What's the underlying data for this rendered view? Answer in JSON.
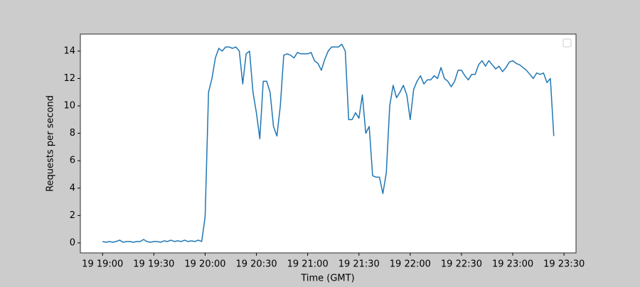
{
  "chart_data": {
    "type": "line",
    "x_label": "Time (GMT)",
    "y_label": "Requests per second",
    "x": [
      "19 19:00",
      "19 19:02",
      "19 19:04",
      "19 19:06",
      "19 19:08",
      "19 19:10",
      "19 19:12",
      "19 19:14",
      "19 19:16",
      "19 19:18",
      "19 19:20",
      "19 19:22",
      "19 19:24",
      "19 19:26",
      "19 19:28",
      "19 19:30",
      "19 19:32",
      "19 19:34",
      "19 19:36",
      "19 19:38",
      "19 19:40",
      "19 19:42",
      "19 19:44",
      "19 19:46",
      "19 19:48",
      "19 19:50",
      "19 19:52",
      "19 19:54",
      "19 19:56",
      "19 19:58",
      "19 20:00",
      "19 20:02",
      "19 20:04",
      "19 20:06",
      "19 20:08",
      "19 20:10",
      "19 20:12",
      "19 20:14",
      "19 20:16",
      "19 20:18",
      "19 20:20",
      "19 20:22",
      "19 20:24",
      "19 20:26",
      "19 20:28",
      "19 20:30",
      "19 20:32",
      "19 20:34",
      "19 20:36",
      "19 20:38",
      "19 20:40",
      "19 20:42",
      "19 20:44",
      "19 20:46",
      "19 20:48",
      "19 20:50",
      "19 20:52",
      "19 20:54",
      "19 20:56",
      "19 20:58",
      "19 21:00",
      "19 21:02",
      "19 21:04",
      "19 21:06",
      "19 21:08",
      "19 21:10",
      "19 21:12",
      "19 21:14",
      "19 21:16",
      "19 21:18",
      "19 21:20",
      "19 21:22",
      "19 21:24",
      "19 21:26",
      "19 21:28",
      "19 21:30",
      "19 21:32",
      "19 21:34",
      "19 21:36",
      "19 21:38",
      "19 21:40",
      "19 21:42",
      "19 21:44",
      "19 21:46",
      "19 21:48",
      "19 21:50",
      "19 21:52",
      "19 21:54",
      "19 21:56",
      "19 21:58",
      "19 22:00",
      "19 22:02",
      "19 22:04",
      "19 22:06",
      "19 22:08",
      "19 22:10",
      "19 22:12",
      "19 22:14",
      "19 22:16",
      "19 22:18",
      "19 22:20",
      "19 22:22",
      "19 22:24",
      "19 22:26",
      "19 22:28",
      "19 22:30",
      "19 22:32",
      "19 22:34",
      "19 22:36",
      "19 22:38",
      "19 22:40",
      "19 22:42",
      "19 22:44",
      "19 22:46",
      "19 22:48",
      "19 22:50",
      "19 22:52",
      "19 22:54",
      "19 22:56",
      "19 22:58",
      "19 23:00",
      "19 23:02",
      "19 23:04",
      "19 23:06",
      "19 23:08",
      "19 23:10",
      "19 23:12",
      "19 23:14",
      "19 23:16",
      "19 23:18",
      "19 23:20",
      "19 23:22",
      "19 23:24"
    ],
    "series": [
      {
        "color": "#1f77b4",
        "values": [
          0.1,
          0.05,
          0.1,
          0.05,
          0.1,
          0.2,
          0.05,
          0.1,
          0.1,
          0.05,
          0.1,
          0.1,
          0.25,
          0.1,
          0.05,
          0.1,
          0.1,
          0.05,
          0.15,
          0.1,
          0.2,
          0.1,
          0.15,
          0.1,
          0.2,
          0.1,
          0.15,
          0.1,
          0.2,
          0.1,
          1.9,
          11.0,
          12.0,
          13.5,
          14.2,
          14.0,
          14.3,
          14.3,
          14.2,
          14.3,
          14.0,
          11.6,
          13.8,
          14.0,
          11.0,
          9.5,
          7.6,
          11.8,
          11.8,
          11.0,
          8.5,
          7.8,
          10.0,
          13.7,
          13.8,
          13.7,
          13.5,
          13.9,
          13.8,
          13.8,
          13.8,
          13.9,
          13.3,
          13.1,
          12.6,
          13.4,
          14.0,
          14.3,
          14.3,
          14.3,
          14.5,
          14.0,
          9.0,
          9.0,
          9.5,
          9.1,
          10.8,
          8.0,
          8.5,
          4.9,
          4.8,
          4.8,
          3.6,
          5.1,
          10.0,
          11.5,
          10.6,
          11.0,
          11.5,
          10.8,
          9.0,
          11.2,
          11.8,
          12.2,
          11.6,
          11.9,
          11.9,
          12.2,
          12.0,
          12.8,
          12.0,
          11.8,
          11.4,
          11.8,
          12.6,
          12.6,
          12.2,
          11.9,
          12.3,
          12.3,
          13.0,
          13.3,
          12.9,
          13.3,
          13.0,
          12.7,
          12.9,
          12.5,
          12.8,
          13.2,
          13.3,
          13.1,
          13.0,
          12.8,
          12.6,
          12.3,
          12.0,
          12.4,
          12.3,
          12.4,
          11.7,
          12.0,
          7.8
        ]
      }
    ],
    "xlim": [
      "19 18:47",
      "19 23:37"
    ],
    "xticks": [
      "19 19:00",
      "19 19:30",
      "19 20:00",
      "19 20:30",
      "19 21:00",
      "19 21:30",
      "19 22:00",
      "19 22:30",
      "19 23:00",
      "19 23:30"
    ],
    "ylim": [
      -0.73,
      15.24
    ],
    "yticks": [
      0,
      2,
      4,
      6,
      8,
      10,
      12,
      14
    ]
  }
}
